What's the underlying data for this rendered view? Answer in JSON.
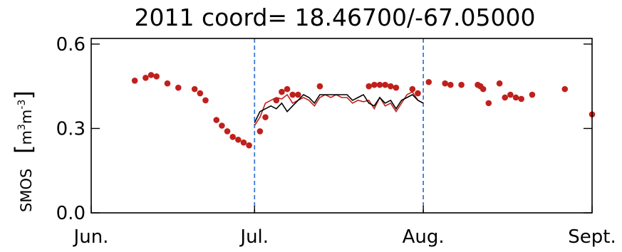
{
  "chart_data": {
    "type": "scatter",
    "title": "2011 coord= 18.46700/-67.05000",
    "ylabel_prefix": "SMOS",
    "ylabel_unit": "m",
    "ylabel_unit_exp1": "3",
    "ylabel_unit_mid": "m",
    "ylabel_unit_exp2": "-3",
    "x_ticks": [
      "Jun.",
      "Jul.",
      "Aug.",
      "Sept."
    ],
    "y_ticks": [
      "0.0",
      "0.3",
      "0.6"
    ],
    "ylim": [
      0,
      0.62
    ],
    "xlim_day_of_year": [
      152,
      244
    ],
    "vertical_dashed_lines_day_of_year": [
      182,
      213
    ],
    "colors": {
      "points": "#c0201c",
      "red_line": "#c0201c",
      "black_line": "#000000",
      "vlines": "#3a7ad6",
      "axes": "#000000"
    },
    "series": [
      {
        "mark": "points",
        "x": [
          160,
          162,
          163,
          164,
          166,
          168,
          171,
          172,
          173,
          175,
          176,
          177,
          178,
          179,
          180,
          181,
          183,
          184,
          186,
          187,
          188,
          189,
          190,
          194,
          203,
          204,
          205,
          206,
          207,
          208,
          211,
          212,
          214,
          217,
          218,
          220,
          223,
          223.5,
          224,
          225,
          227,
          228,
          229,
          230,
          231,
          233,
          239,
          244
        ],
        "y": [
          0.47,
          0.48,
          0.49,
          0.485,
          0.46,
          0.445,
          0.44,
          0.425,
          0.4,
          0.33,
          0.31,
          0.29,
          0.27,
          0.26,
          0.25,
          0.24,
          0.29,
          0.34,
          0.4,
          0.43,
          0.44,
          0.42,
          0.42,
          0.45,
          0.45,
          0.455,
          0.455,
          0.455,
          0.45,
          0.445,
          0.44,
          0.425,
          0.465,
          0.46,
          0.455,
          0.455,
          0.455,
          0.45,
          0.44,
          0.39,
          0.46,
          0.41,
          0.42,
          0.41,
          0.405,
          0.42,
          0.44,
          0.35
        ]
      },
      {
        "mark": "line-red",
        "x": [
          182,
          183,
          184,
          185,
          186,
          187,
          188,
          189,
          190,
          191,
          192,
          193,
          194,
          195,
          196,
          197,
          198,
          199,
          200,
          201,
          202,
          203,
          204,
          205,
          206,
          207,
          208,
          209,
          210,
          211,
          212,
          213
        ],
        "y": [
          0.31,
          0.34,
          0.39,
          0.4,
          0.41,
          0.405,
          0.42,
          0.39,
          0.4,
          0.41,
          0.4,
          0.38,
          0.41,
          0.42,
          0.41,
          0.42,
          0.41,
          0.41,
          0.39,
          0.4,
          0.395,
          0.4,
          0.37,
          0.41,
          0.38,
          0.39,
          0.36,
          0.39,
          0.42,
          0.43,
          0.4,
          0.39
        ]
      },
      {
        "mark": "line-black",
        "x": [
          182,
          183,
          184,
          185,
          186,
          187,
          188,
          189,
          190,
          191,
          192,
          193,
          194,
          195,
          196,
          197,
          198,
          199,
          200,
          201,
          202,
          203,
          204,
          205,
          206,
          207,
          208,
          209,
          210,
          211,
          212,
          213
        ],
        "y": [
          0.32,
          0.36,
          0.37,
          0.38,
          0.37,
          0.39,
          0.36,
          0.38,
          0.4,
          0.42,
          0.41,
          0.39,
          0.42,
          0.42,
          0.42,
          0.42,
          0.42,
          0.42,
          0.4,
          0.41,
          0.42,
          0.39,
          0.38,
          0.41,
          0.39,
          0.4,
          0.37,
          0.4,
          0.41,
          0.42,
          0.4,
          0.39
        ]
      }
    ]
  }
}
